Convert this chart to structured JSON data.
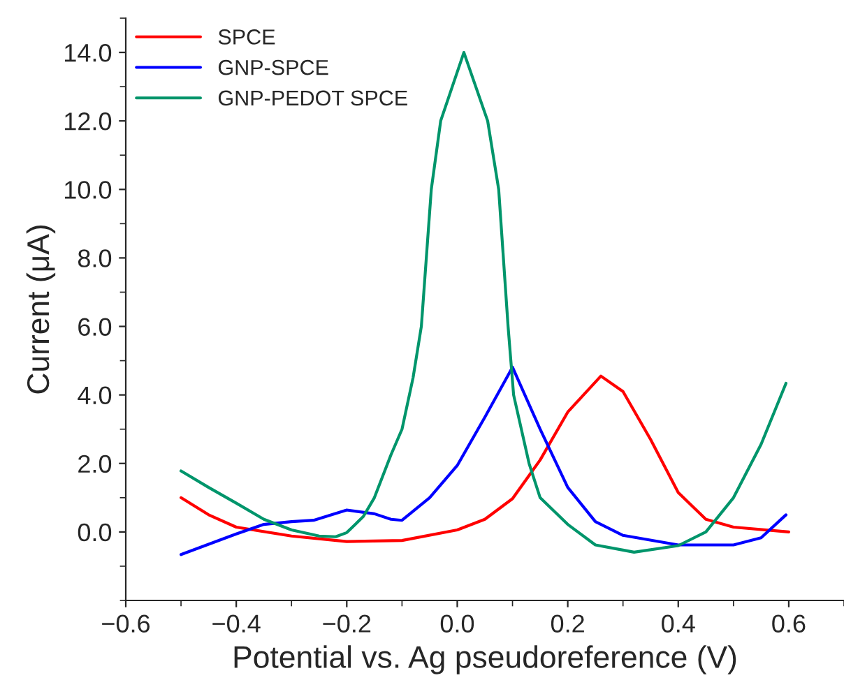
{
  "chart_data": {
    "type": "line",
    "xlabel": "Potential vs. Ag pseudoreference (V)",
    "ylabel": "Current (μA)",
    "xlim": [
      -0.6,
      0.7
    ],
    "ylim": [
      -2,
      15
    ],
    "xticks": [
      {
        "value": -0.6,
        "label": "−0.6"
      },
      {
        "value": -0.4,
        "label": "−0.4"
      },
      {
        "value": -0.2,
        "label": "−0.2"
      },
      {
        "value": 0.0,
        "label": "0.0"
      },
      {
        "value": 0.2,
        "label": "0.2"
      },
      {
        "value": 0.4,
        "label": "0.4"
      },
      {
        "value": 0.6,
        "label": "0.6"
      }
    ],
    "yticks": [
      {
        "value": 0,
        "label": "0.0"
      },
      {
        "value": 2,
        "label": "2.0"
      },
      {
        "value": 4,
        "label": "4.0"
      },
      {
        "value": 6,
        "label": "6.0"
      },
      {
        "value": 8,
        "label": "8.0"
      },
      {
        "value": 10,
        "label": "10.0"
      },
      {
        "value": 12,
        "label": "12.0"
      },
      {
        "value": 14,
        "label": "14.0"
      }
    ],
    "grid": false,
    "legend": "top left",
    "marker": "none",
    "line_style": "solid",
    "series": [
      {
        "name": "SPCE",
        "color": "#ff0000",
        "x": [
          -0.5,
          -0.45,
          -0.4,
          -0.3,
          -0.2,
          -0.1,
          0.0,
          0.05,
          0.1,
          0.15,
          0.2,
          0.26,
          0.3,
          0.35,
          0.4,
          0.45,
          0.5,
          0.6
        ],
        "values": [
          1.0,
          0.5,
          0.14,
          -0.12,
          -0.28,
          -0.25,
          0.06,
          0.37,
          0.97,
          2.1,
          3.5,
          4.55,
          4.1,
          2.7,
          1.15,
          0.37,
          0.14,
          0.0
        ]
      },
      {
        "name": "GNP-SPCE",
        "color": "#0000ff",
        "x": [
          -0.5,
          -0.4,
          -0.35,
          -0.3,
          -0.26,
          -0.2,
          -0.15,
          -0.12,
          -0.1,
          -0.05,
          0.0,
          0.05,
          0.1,
          0.15,
          0.2,
          0.25,
          0.3,
          0.4,
          0.5,
          0.55,
          0.595
        ],
        "values": [
          -0.66,
          -0.06,
          0.22,
          0.3,
          0.34,
          0.64,
          0.53,
          0.37,
          0.34,
          1.0,
          1.94,
          3.35,
          4.81,
          3.0,
          1.3,
          0.3,
          -0.1,
          -0.38,
          -0.38,
          -0.17,
          0.5
        ]
      },
      {
        "name": "GNP-PEDOT SPCE",
        "color": "#00956b",
        "x": [
          -0.5,
          -0.45,
          -0.4,
          -0.35,
          -0.3,
          -0.25,
          -0.22,
          -0.2,
          -0.17,
          -0.15,
          -0.12,
          -0.1,
          -0.08,
          -0.065,
          -0.047,
          -0.03,
          0.012,
          0.055,
          0.075,
          0.092,
          0.102,
          0.13,
          0.15,
          0.2,
          0.25,
          0.3,
          0.32,
          0.4,
          0.45,
          0.5,
          0.55,
          0.595
        ],
        "values": [
          1.78,
          1.3,
          0.84,
          0.37,
          0.06,
          -0.12,
          -0.14,
          -0.02,
          0.45,
          1.0,
          2.25,
          3.0,
          4.5,
          6.0,
          10.0,
          12.0,
          14.0,
          12.0,
          10.0,
          6.0,
          4.0,
          2.0,
          1.0,
          0.22,
          -0.38,
          -0.53,
          -0.59,
          -0.4,
          0.0,
          1.0,
          2.56,
          4.34
        ]
      }
    ]
  }
}
